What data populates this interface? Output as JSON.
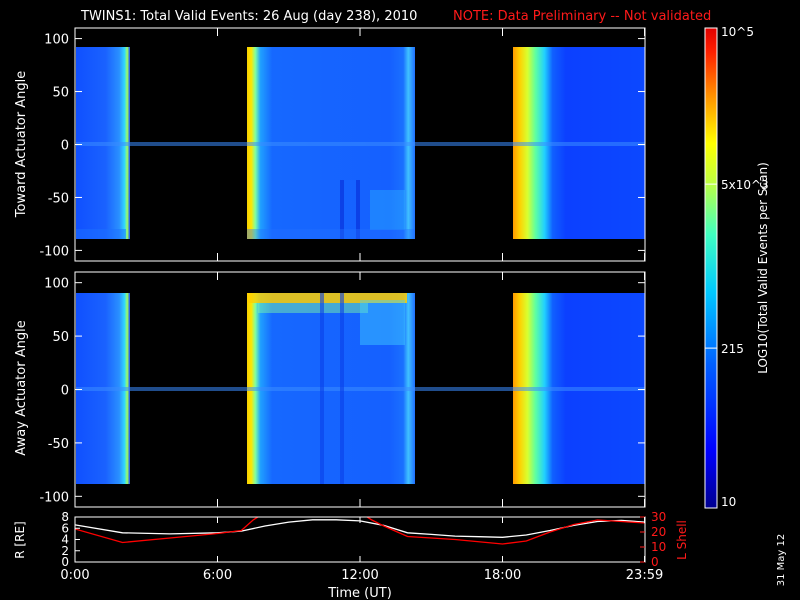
{
  "title": {
    "main": "TWINS1: Total Valid Events: 26 Aug (day 238), 2010",
    "note": "NOTE: Data Preliminary -- Not validated"
  },
  "date_stamp": "31 May 12",
  "colors": {
    "background": "#000000",
    "axes": "#ffffff",
    "note": "#ff1a1a",
    "l_shell_line": "#ff0000",
    "r_line": "#ffffff"
  },
  "colorbar": {
    "label": "LOG10(Total Valid Events per Scan)",
    "scale": "log",
    "range": [
      10,
      100000
    ],
    "ticks": [
      {
        "value": 10,
        "label": "10"
      },
      {
        "value": 215,
        "label": "215"
      },
      {
        "value": 5000,
        "label": "5x10^3"
      },
      {
        "value": 100000,
        "label": "10^5"
      }
    ],
    "colormap": [
      "#00008f",
      "#0000ff",
      "#0060ff",
      "#00c8ff",
      "#40ffc0",
      "#c0ff40",
      "#ffff00",
      "#ff9000",
      "#ff2000",
      "#e00000"
    ]
  },
  "chart_data": [
    {
      "type": "heatmap",
      "ylabel": "Toward Actuator Angle",
      "ylim": [
        -110,
        110
      ],
      "yticks": [
        100,
        50,
        0,
        -50,
        -100
      ],
      "xlim_hours": [
        0,
        24
      ],
      "segments": [
        {
          "start": "00:00",
          "end": "02:00",
          "value_range": [
            100,
            2000
          ]
        },
        {
          "start": "07:05",
          "end": "14:20",
          "value_range": [
            150,
            6000
          ]
        },
        {
          "start": "18:35",
          "end": "24:00",
          "value_range": [
            100,
            6000
          ]
        }
      ]
    },
    {
      "type": "heatmap",
      "ylabel": "Away Actuator Angle",
      "ylim": [
        -110,
        110
      ],
      "yticks": [
        100,
        50,
        0,
        -50,
        -100
      ],
      "xlim_hours": [
        0,
        24
      ],
      "segments": [
        {
          "start": "00:00",
          "end": "02:00",
          "value_range": [
            100,
            3000
          ]
        },
        {
          "start": "07:05",
          "end": "14:20",
          "value_range": [
            150,
            8000
          ]
        },
        {
          "start": "18:35",
          "end": "24:00",
          "value_range": [
            100,
            9000
          ]
        }
      ]
    },
    {
      "type": "line",
      "xlabel": "Time (UT)",
      "xticks": [
        "0:00",
        "6:00",
        "12:00",
        "18:00",
        "23:59"
      ],
      "xtick_hours": [
        0,
        6,
        12,
        18,
        23.98
      ],
      "ylabel_left": "R [RE]",
      "ylabel_right": "L Shell",
      "ylim_left": [
        0,
        8
      ],
      "ylim_right": [
        0,
        30
      ],
      "yticks_left": [
        "0",
        "2",
        "4",
        "6",
        "8"
      ],
      "yticks_right": [
        "0",
        "10",
        "20",
        "30"
      ],
      "series": [
        {
          "axis": "left",
          "x": [
            0,
            2,
            4,
            6,
            7,
            8,
            9,
            10,
            11,
            12,
            13,
            14,
            15,
            16,
            17,
            18,
            19,
            20,
            21,
            22,
            23,
            24
          ],
          "y": [
            6.6,
            5.2,
            5.0,
            5.2,
            5.5,
            6.4,
            7.1,
            7.5,
            7.5,
            7.3,
            6.5,
            5.2,
            4.9,
            4.6,
            4.5,
            4.4,
            4.8,
            5.6,
            6.5,
            7.2,
            7.4,
            7.1
          ]
        },
        {
          "axis": "right",
          "x": [
            0,
            2,
            4,
            6,
            7,
            7.5,
            8,
            12,
            12.5,
            13,
            14,
            16,
            18,
            19,
            20,
            21,
            22,
            23,
            24
          ],
          "y": [
            22,
            13,
            16,
            19,
            21,
            28,
            33,
            33,
            28,
            24,
            17,
            15,
            12,
            14,
            20,
            25,
            28,
            27,
            26
          ]
        }
      ]
    }
  ]
}
